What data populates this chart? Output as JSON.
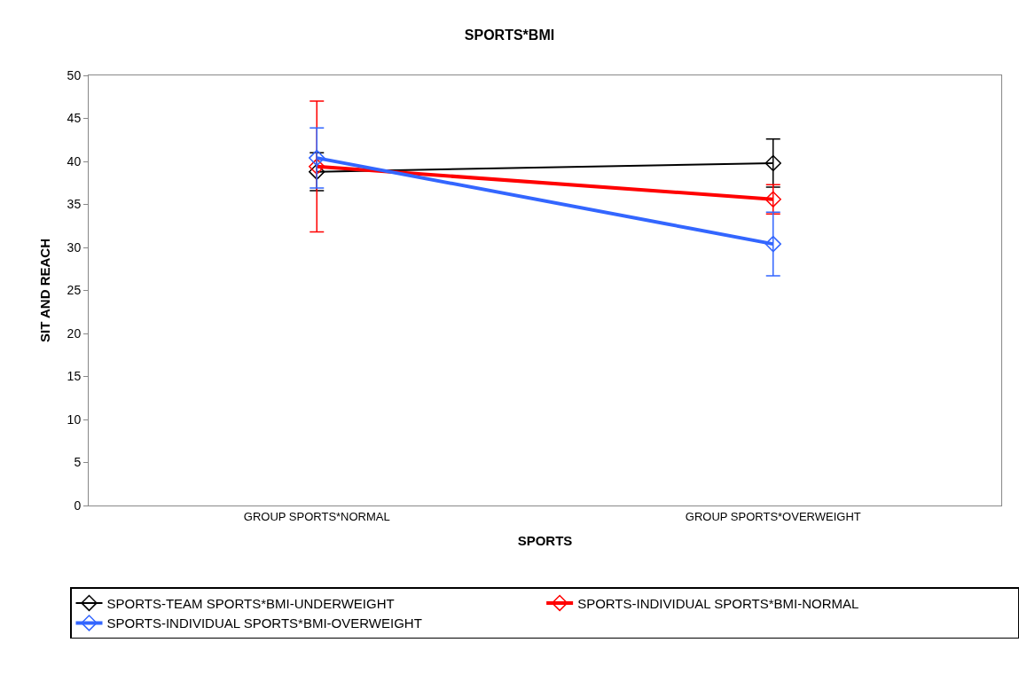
{
  "chart_data": {
    "type": "line",
    "title": "SPORTS*BMI",
    "xlabel": "SPORTS",
    "ylabel": "SIT AND REACH",
    "categories": [
      "GROUP SPORTS*NORMAL",
      "GROUP SPORTS*OVERWEIGHT"
    ],
    "series": [
      {
        "name": "SPORTS-TEAM SPORTS*BMI-UNDERWEIGHT",
        "color": "#000000",
        "values": [
          38.8,
          39.8
        ],
        "errors": [
          2.2,
          2.8
        ]
      },
      {
        "name": "SPORTS-INDIVIDUAL SPORTS*BMI-NORMAL",
        "color": "#ff0000",
        "values": [
          39.4,
          35.6
        ],
        "errors": [
          7.6,
          1.7
        ]
      },
      {
        "name": "SPORTS-INDIVIDUAL SPORTS*BMI-OVERWEIGHT",
        "color": "#3366ff",
        "values": [
          40.4,
          30.4
        ],
        "errors": [
          3.5,
          3.7
        ]
      }
    ],
    "ylim": [
      0,
      50
    ],
    "yticks": [
      0,
      5,
      10,
      15,
      20,
      25,
      30,
      35,
      40,
      45,
      50
    ],
    "legend": "bottom",
    "marker": "diamond",
    "line_style": "solid"
  }
}
